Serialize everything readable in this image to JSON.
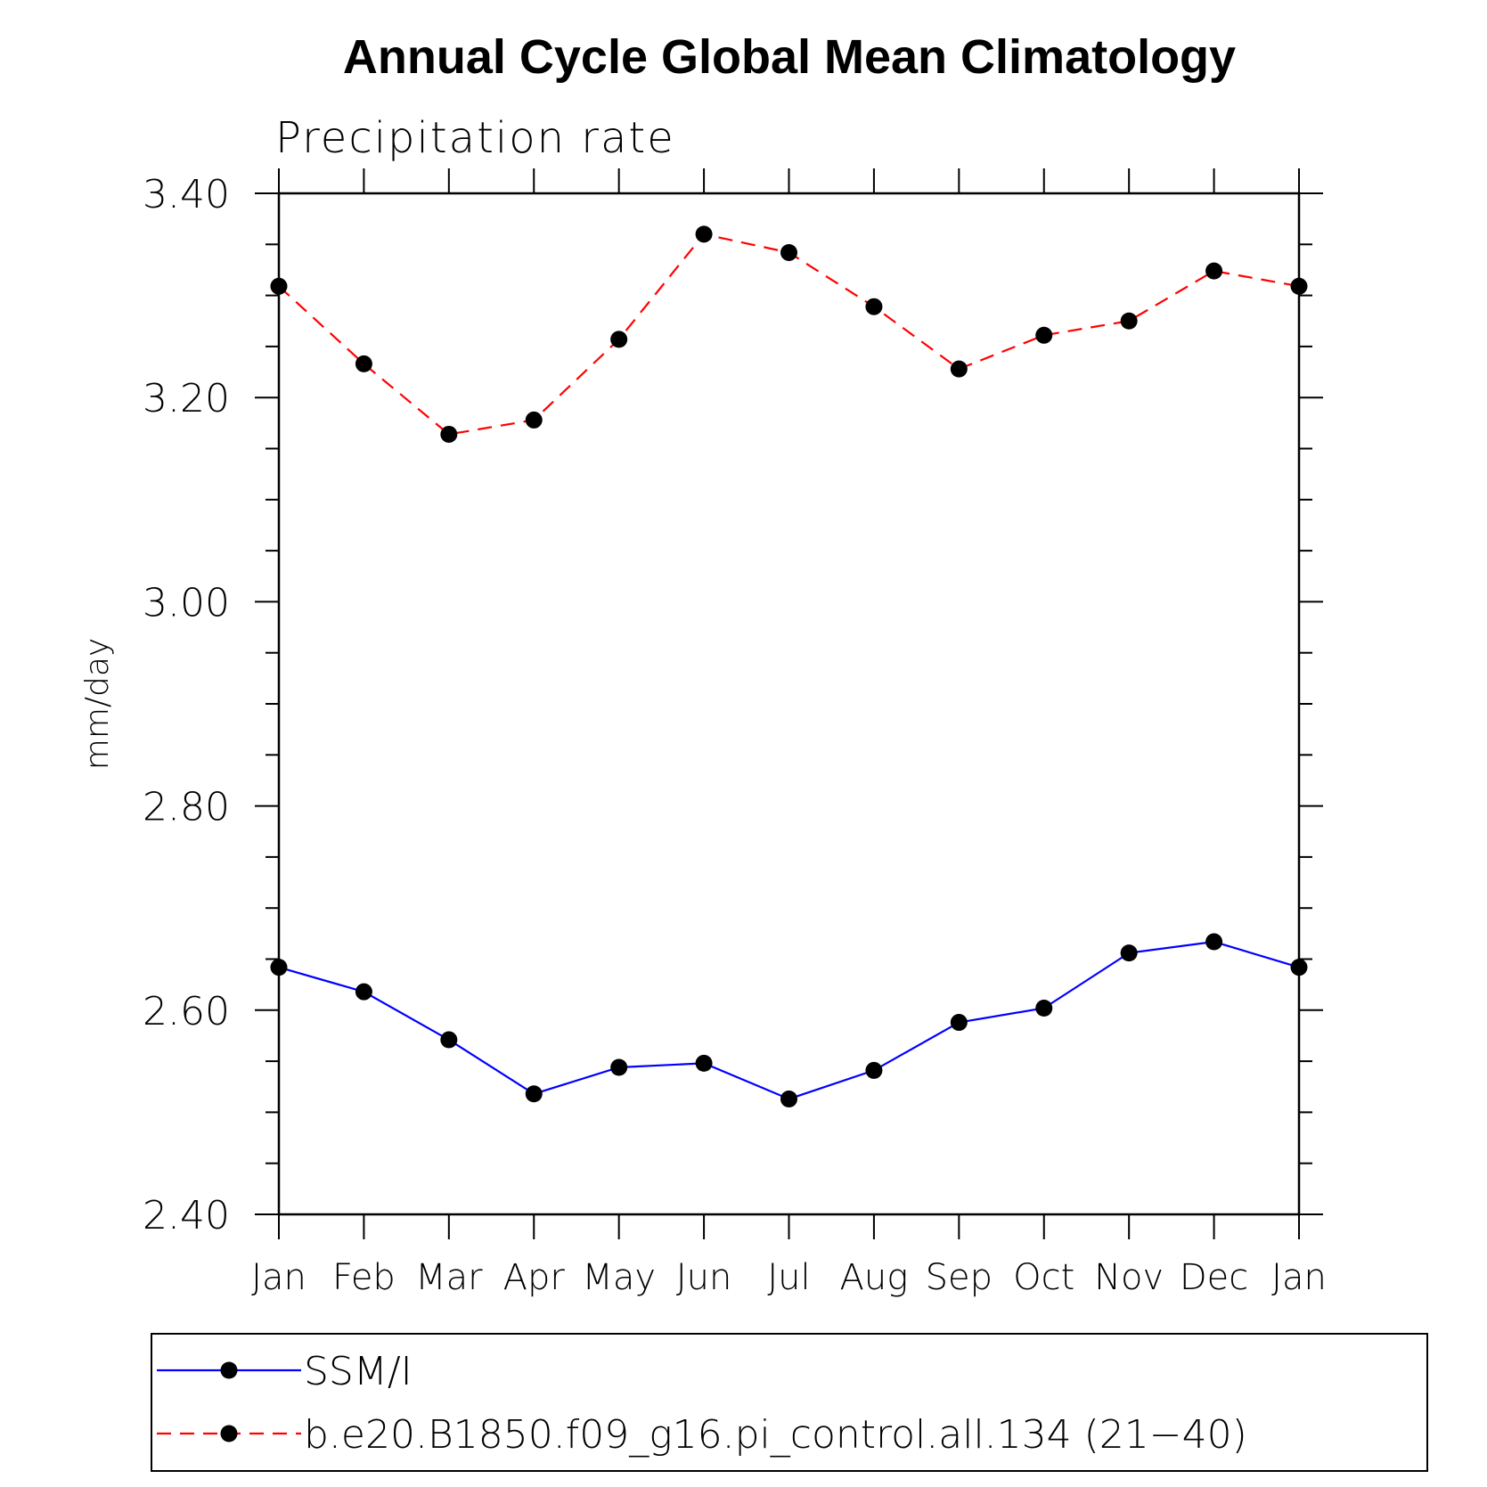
{
  "chart_data": {
    "type": "line",
    "title": "Annual Cycle Global Mean Climatology",
    "subtitle": "Precipitation rate",
    "xlabel": "",
    "ylabel": "mm/day",
    "categories": [
      "Jan",
      "Feb",
      "Mar",
      "Apr",
      "May",
      "Jun",
      "Jul",
      "Aug",
      "Sep",
      "Oct",
      "Nov",
      "Dec",
      "Jan"
    ],
    "ylim": [
      2.4,
      3.4
    ],
    "yticks": [
      "2.40",
      "2.60",
      "2.80",
      "3.00",
      "3.20",
      "3.40"
    ],
    "grid": false,
    "legend_position": "bottom",
    "series": [
      {
        "name": "SSM/I",
        "color": "#0000ff",
        "line_style": "solid",
        "marker": "circle",
        "values": [
          2.642,
          2.618,
          2.571,
          2.518,
          2.544,
          2.548,
          2.513,
          2.541,
          2.588,
          2.602,
          2.656,
          2.667,
          2.642
        ]
      },
      {
        "name": "b.e20.B1850.f09_g16.pi_control.all.134 (21−40)",
        "color": "#ff0000",
        "line_style": "dashed",
        "marker": "circle",
        "values": [
          3.309,
          3.233,
          3.164,
          3.178,
          3.257,
          3.36,
          3.342,
          3.289,
          3.228,
          3.261,
          3.275,
          3.324,
          3.309
        ]
      }
    ]
  }
}
